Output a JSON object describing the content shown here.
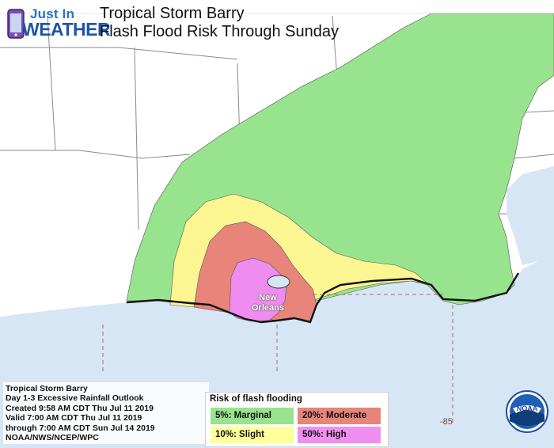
{
  "header": {
    "title_line1": "Tropical Storm Barry",
    "title_line2": "Flash Flood Risk Through  Sunday"
  },
  "logo": {
    "line1": "Just In",
    "line2": "WEATHER",
    "icon": "phone-icon"
  },
  "info": {
    "lines": [
      "Tropical Storm Barry",
      "Day 1-3 Excessive Rainfall Outlook",
      "Created 9:58 AM CDT Thu Jul 11 2019",
      "Valid 7:00 AM CDT Thu Jul 11 2019",
      "through 7:00 AM CDT Sun Jul 14 2019",
      "NOAA/NWS/NCEP/WPC"
    ]
  },
  "legend": {
    "title": "Risk of flash flooding",
    "items": [
      {
        "label": "5%: Marginal",
        "color": "#98e38e"
      },
      {
        "label": "20%: Moderate",
        "color": "#e8847a"
      },
      {
        "label": "10%: Slight",
        "color": "#ffff9a"
      },
      {
        "label": "50%: High",
        "color": "#f08ff0"
      }
    ]
  },
  "map": {
    "city_line1": "New",
    "city_line2": "Orleans",
    "grid_label": "-85",
    "colors": {
      "land": "#ffffff",
      "water": "#d7e6f4",
      "marginal": "#98e38e",
      "slight": "#fbf691",
      "moderate": "#e8847a",
      "high": "#ee8cef",
      "boundary": "#8a8a8a"
    }
  },
  "noaa_logo": {
    "text": "NOAA"
  }
}
